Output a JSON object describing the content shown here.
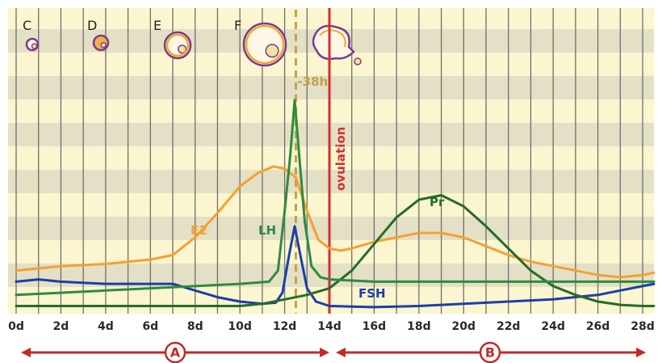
{
  "chart_data": {
    "type": "line",
    "x_unit": "day",
    "xlim": [
      0,
      28.5
    ],
    "ylim": [
      0,
      100
    ],
    "x_ticks": [
      0,
      2,
      4,
      6,
      8,
      10,
      12,
      14,
      16,
      18,
      20,
      22,
      24,
      26,
      28
    ],
    "x_tick_labels": [
      "0d",
      "2d",
      "4d",
      "6d",
      "8d",
      "10d",
      "12d",
      "14d",
      "16d",
      "18d",
      "20d",
      "22d",
      "24d",
      "26d",
      "28d"
    ],
    "highlight_tick": "14d",
    "grid": true,
    "series": [
      {
        "name": "E2",
        "color": "#f5a030",
        "label": "E2",
        "points": [
          [
            0,
            18
          ],
          [
            2,
            20
          ],
          [
            4,
            21
          ],
          [
            6,
            23
          ],
          [
            7,
            25
          ],
          [
            8,
            33
          ],
          [
            9,
            44
          ],
          [
            10,
            56
          ],
          [
            10.8,
            62
          ],
          [
            11.5,
            65
          ],
          [
            12,
            64
          ],
          [
            12.5,
            60
          ],
          [
            13,
            45
          ],
          [
            13.5,
            32
          ],
          [
            14,
            28
          ],
          [
            14.5,
            27
          ],
          [
            15,
            28
          ],
          [
            16,
            31
          ],
          [
            17,
            33
          ],
          [
            18,
            35
          ],
          [
            19,
            35
          ],
          [
            20,
            33
          ],
          [
            21,
            29
          ],
          [
            22,
            25
          ],
          [
            23,
            22
          ],
          [
            24,
            20
          ],
          [
            25,
            18
          ],
          [
            26,
            16
          ],
          [
            27,
            15
          ],
          [
            28,
            16
          ],
          [
            28.5,
            17
          ]
        ]
      },
      {
        "name": "LH",
        "color": "#2e8b3e",
        "label": "LH",
        "points": [
          [
            0,
            7
          ],
          [
            2,
            8
          ],
          [
            4,
            9
          ],
          [
            6,
            10
          ],
          [
            8,
            11
          ],
          [
            10,
            12
          ],
          [
            11.3,
            13
          ],
          [
            11.7,
            18
          ],
          [
            12,
            45
          ],
          [
            12.25,
            70
          ],
          [
            12.45,
            95
          ],
          [
            12.65,
            70
          ],
          [
            12.9,
            40
          ],
          [
            13.2,
            20
          ],
          [
            13.6,
            15
          ],
          [
            14,
            14
          ],
          [
            16,
            13
          ],
          [
            18,
            13
          ],
          [
            20,
            13
          ],
          [
            22,
            13
          ],
          [
            24,
            13
          ],
          [
            26,
            13
          ],
          [
            28,
            13
          ],
          [
            28.5,
            13
          ]
        ]
      },
      {
        "name": "FSH",
        "color": "#1a3fa8",
        "label": "FSH",
        "points": [
          [
            0,
            13
          ],
          [
            1,
            14
          ],
          [
            2,
            13
          ],
          [
            4,
            12
          ],
          [
            6,
            12
          ],
          [
            7,
            12
          ],
          [
            8,
            9
          ],
          [
            9,
            6
          ],
          [
            10,
            4
          ],
          [
            11,
            3
          ],
          [
            11.6,
            3.5
          ],
          [
            11.9,
            8
          ],
          [
            12.2,
            25
          ],
          [
            12.45,
            38
          ],
          [
            12.7,
            25
          ],
          [
            13,
            10
          ],
          [
            13.4,
            4
          ],
          [
            14,
            2
          ],
          [
            16,
            1.5
          ],
          [
            18,
            2
          ],
          [
            20,
            3
          ],
          [
            22,
            4
          ],
          [
            24,
            5
          ],
          [
            26,
            7
          ],
          [
            27,
            9
          ],
          [
            28,
            11
          ],
          [
            28.5,
            12
          ]
        ]
      },
      {
        "name": "Pr",
        "color": "#256b2a",
        "label": "Pr",
        "points": [
          [
            0,
            2
          ],
          [
            4,
            2
          ],
          [
            8,
            2
          ],
          [
            10,
            2
          ],
          [
            11,
            3
          ],
          [
            12,
            5
          ],
          [
            13,
            7
          ],
          [
            14,
            10
          ],
          [
            15,
            18
          ],
          [
            16,
            30
          ],
          [
            17,
            42
          ],
          [
            18,
            50
          ],
          [
            19,
            52
          ],
          [
            20,
            47
          ],
          [
            21,
            38
          ],
          [
            22,
            28
          ],
          [
            23,
            18
          ],
          [
            24,
            11
          ],
          [
            25,
            7
          ],
          [
            26,
            4
          ],
          [
            27,
            2.5
          ],
          [
            28,
            2
          ],
          [
            28.5,
            2
          ]
        ]
      }
    ],
    "ovulation": {
      "x": 14,
      "label": "ovulation",
      "color": "#d32f2f"
    },
    "lh_peak_marker": {
      "x": 12.5,
      "label": "-38h",
      "color": "#c2a24a"
    },
    "follicle_stages": [
      {
        "label": "C",
        "day": 1
      },
      {
        "label": "D",
        "day": 4
      },
      {
        "label": "E",
        "day": 7
      },
      {
        "label": "F",
        "day": 11
      },
      {
        "label": "",
        "day": 14
      }
    ],
    "phases": [
      {
        "label": "A",
        "from": 0,
        "to": 14
      },
      {
        "label": "B",
        "from": 14,
        "to": 28.5
      }
    ]
  }
}
